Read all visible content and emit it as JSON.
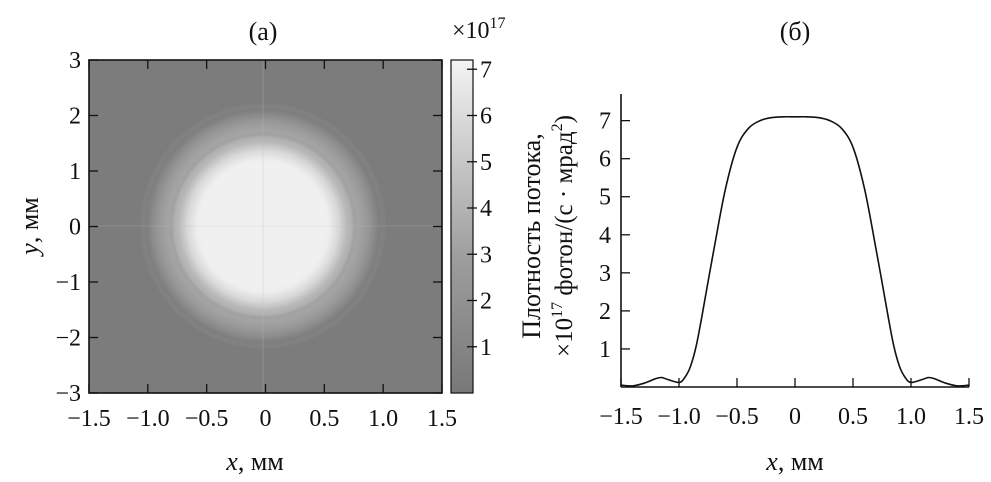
{
  "chart_data": [
    {
      "type": "heatmap",
      "panel_label": "(a)",
      "xlabel_var": "x",
      "xlabel_unit": ", мм",
      "ylabel_var": "y",
      "ylabel_unit": ", мм",
      "xlim": [
        -1.5,
        1.5
      ],
      "ylim": [
        -3,
        3
      ],
      "x_ticks": [
        -1.5,
        -1.0,
        -0.5,
        0,
        0.5,
        1.0,
        1.5
      ],
      "x_tick_labels": [
        "−1.5",
        "−1.0",
        "−0.5",
        "0",
        "0.5",
        "1.0",
        "1.5"
      ],
      "y_ticks": [
        3,
        2,
        1,
        0,
        -1,
        -2,
        -3
      ],
      "y_tick_labels": [
        "3",
        "2",
        "1",
        "0",
        "−1",
        "−2",
        "−3"
      ],
      "colorbar": {
        "multiplier_base": "×10",
        "multiplier_exp": "17",
        "range": [
          0,
          7.2
        ],
        "ticks": [
          1,
          2,
          3,
          4,
          5,
          6,
          7
        ],
        "tick_labels": [
          "1",
          "2",
          "3",
          "4",
          "5",
          "6",
          "7"
        ],
        "color_low": "#7a7a7a",
        "color_high": "#f2f2f2"
      },
      "spot": {
        "center": [
          0,
          0
        ],
        "core_radius_mm": 0.5,
        "edge_radius_mm": 0.7,
        "ring_radii_mm": [
          0.78,
          1.13
        ],
        "peak_value": 7.1
      }
    },
    {
      "type": "line",
      "panel_label": "(б)",
      "xlabel_var": "x",
      "xlabel_unit": ", мм",
      "ylabel_line1": "Плотность потока,",
      "ylabel_line2_prefix": "×10",
      "ylabel_line2_exp": "17",
      "ylabel_line2_body": " фотон/(с · мрад",
      "ylabel_line2_exp2": "2",
      "ylabel_line2_end": ")",
      "xlim": [
        -1.5,
        1.5
      ],
      "ylim": [
        0,
        7.7
      ],
      "x_ticks": [
        -1.5,
        -1.0,
        -0.5,
        0,
        0.5,
        1.0,
        1.5
      ],
      "x_tick_labels": [
        "−1.5",
        "−1.0",
        "−0.5",
        "0",
        "0.5",
        "1.0",
        "1.5"
      ],
      "y_ticks": [
        1,
        2,
        3,
        4,
        5,
        6,
        7
      ],
      "y_tick_labels": [
        "1",
        "2",
        "3",
        "4",
        "5",
        "6",
        "7"
      ],
      "series": [
        {
          "x": [
            -1.5,
            -1.4,
            -1.3,
            -1.2,
            -1.15,
            -1.1,
            -1.0,
            -0.95,
            -0.9,
            -0.85,
            -0.8,
            -0.7,
            -0.6,
            -0.5,
            -0.4,
            -0.3,
            -0.2,
            -0.1,
            0,
            0.1,
            0.2,
            0.3,
            0.4,
            0.5,
            0.6,
            0.7,
            0.8,
            0.85,
            0.9,
            0.95,
            1.0,
            1.1,
            1.15,
            1.2,
            1.3,
            1.4,
            1.5
          ],
          "y": [
            0.05,
            0.03,
            0.1,
            0.22,
            0.25,
            0.2,
            0.12,
            0.25,
            0.55,
            1.1,
            1.9,
            3.6,
            5.2,
            6.3,
            6.8,
            7.0,
            7.08,
            7.1,
            7.1,
            7.1,
            7.08,
            7.0,
            6.8,
            6.3,
            5.2,
            3.6,
            1.9,
            1.1,
            0.55,
            0.25,
            0.12,
            0.2,
            0.25,
            0.22,
            0.1,
            0.03,
            0.05
          ]
        }
      ]
    }
  ]
}
